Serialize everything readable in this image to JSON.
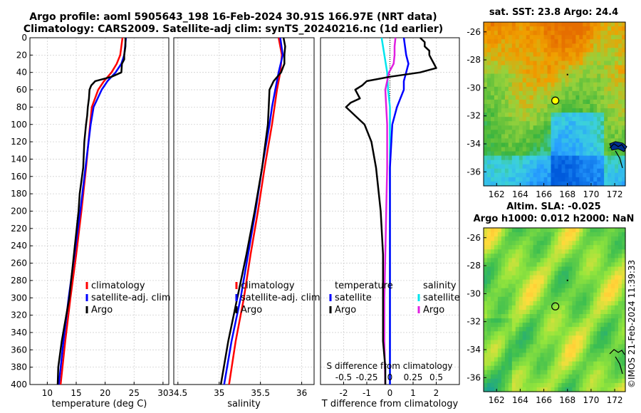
{
  "title_line1": "Argo profile: aoml 5905643_198 16-Feb-2024 30.91S 166.97E (NRT data)",
  "title_line2": "Climatology: CARS2009. Satellite-adj clim: synTS_20240216.nc (1d earlier)",
  "sst_title": "sat. SST: 23.8 Argo: 24.4",
  "sla_title1": "Altim. SLA: -0.025",
  "sla_title2": "Argo h1000: 0.012 h2000: NaN",
  "timestamp": "©IMOS 21-Feb-2024 11:39:33",
  "colors": {
    "climatology": "#ff0000",
    "satellite": "#0000ff",
    "argo": "#000000",
    "sat_salinity": "#00e5ee",
    "argo_salinity": "#e020e0"
  },
  "chart_data": [
    {
      "type": "line",
      "name": "temperature-profile",
      "xlabel": "temperature (deg C)",
      "ylabel": "",
      "xlim": [
        7,
        31
      ],
      "ylim": [
        0,
        400
      ],
      "xticks": [
        "10",
        "15",
        "20",
        "25",
        "30"
      ],
      "yticks": [
        "0",
        "20",
        "40",
        "60",
        "80",
        "100",
        "120",
        "140",
        "160",
        "180",
        "200",
        "220",
        "240",
        "260",
        "280",
        "300",
        "320",
        "340",
        "360",
        "380",
        "400"
      ],
      "legend": [
        "climatology",
        "satellite-adj. clim",
        "Argo"
      ],
      "series": [
        {
          "name": "climatology",
          "depth": [
            0,
            20,
            30,
            40,
            50,
            60,
            80,
            100,
            150,
            200,
            250,
            300,
            350,
            400
          ],
          "values": [
            23.0,
            22.6,
            22.0,
            21.1,
            19.8,
            18.8,
            17.7,
            17.4,
            16.7,
            15.9,
            15.0,
            14.0,
            13.1,
            12.3
          ]
        },
        {
          "name": "satellite-adj. clim",
          "depth": [
            0,
            20,
            30,
            40,
            50,
            60,
            80,
            100,
            150,
            200,
            250,
            300,
            350,
            400
          ],
          "values": [
            23.6,
            23.3,
            22.8,
            21.8,
            20.4,
            19.4,
            18.0,
            17.5,
            16.6,
            15.7,
            14.7,
            13.7,
            12.8,
            12.0
          ]
        },
        {
          "name": "Argo",
          "depth": [
            0,
            10,
            20,
            25,
            30,
            40,
            45,
            50,
            55,
            60,
            70,
            80,
            90,
            100,
            120,
            150,
            180,
            200,
            250,
            300,
            350,
            380,
            400
          ],
          "values": [
            23.5,
            23.5,
            23.3,
            23.3,
            22.9,
            22.8,
            21.1,
            18.3,
            17.6,
            17.3,
            17.2,
            17.0,
            16.9,
            16.7,
            16.4,
            16.2,
            15.6,
            15.4,
            14.6,
            13.8,
            12.5,
            11.9,
            11.8
          ]
        }
      ]
    },
    {
      "type": "line",
      "name": "salinity-profile",
      "xlabel": "salinity",
      "ylabel": "",
      "xlim": [
        34.45,
        36.15
      ],
      "ylim": [
        0,
        400
      ],
      "xticks": [
        "34.5",
        "35",
        "35.5",
        "36"
      ],
      "legend": [
        "climatology",
        "satellite-adj. clim",
        "Argo"
      ],
      "series": [
        {
          "name": "climatology",
          "depth": [
            0,
            20,
            40,
            60,
            80,
            100,
            150,
            200,
            250,
            300,
            350,
            400
          ],
          "values": [
            35.72,
            35.76,
            35.74,
            35.7,
            35.67,
            35.64,
            35.55,
            35.47,
            35.38,
            35.3,
            35.2,
            35.12
          ]
        },
        {
          "name": "satellite-adj. clim",
          "depth": [
            0,
            20,
            40,
            60,
            80,
            100,
            150,
            200,
            250,
            300,
            350,
            400
          ],
          "values": [
            35.74,
            35.77,
            35.72,
            35.68,
            35.64,
            35.61,
            35.52,
            35.44,
            35.35,
            35.26,
            35.15,
            35.06
          ]
        },
        {
          "name": "Argo",
          "depth": [
            0,
            10,
            20,
            30,
            40,
            50,
            60,
            80,
            100,
            150,
            200,
            250,
            300,
            350,
            400
          ],
          "values": [
            35.78,
            35.8,
            35.79,
            35.79,
            35.75,
            35.66,
            35.61,
            35.6,
            35.59,
            35.52,
            35.43,
            35.33,
            35.22,
            35.11,
            35.02
          ]
        }
      ]
    },
    {
      "type": "line",
      "name": "difference-profile",
      "xlabel": "T difference from climatology",
      "top_xlabel": "S difference from climatology",
      "xlim": [
        -3,
        3
      ],
      "ylim": [
        0,
        400
      ],
      "xticks": [
        "-2",
        "-1",
        "0",
        "1",
        "2"
      ],
      "top_xticks": [
        "-0.5",
        "-0.25",
        "0",
        "0.25",
        "0.5"
      ],
      "legend_temperature": [
        "temperature",
        "satellite",
        "Argo"
      ],
      "legend_salinity": [
        "salinity",
        "satellite",
        "Argo"
      ],
      "series": [
        {
          "name": "temperature satellite",
          "depth": [
            0,
            20,
            30,
            40,
            50,
            60,
            80,
            100,
            150,
            200,
            400
          ],
          "values": [
            0.6,
            0.7,
            0.8,
            0.7,
            0.6,
            0.6,
            0.3,
            0.1,
            0.0,
            0.0,
            0.0
          ]
        },
        {
          "name": "temperature Argo",
          "depth": [
            0,
            5,
            10,
            15,
            20,
            25,
            30,
            35,
            40,
            45,
            50,
            55,
            60,
            70,
            75,
            80,
            90,
            100,
            120,
            150,
            200,
            250,
            300,
            350,
            380,
            400
          ],
          "values": [
            1.3,
            1.5,
            1.5,
            1.7,
            1.7,
            1.8,
            1.9,
            2.0,
            1.3,
            0.0,
            -1.0,
            -1.2,
            -1.5,
            -1.3,
            -1.7,
            -1.9,
            -1.5,
            -1.1,
            -0.8,
            -0.6,
            -0.4,
            -0.3,
            -0.3,
            -0.3,
            -0.2,
            -0.2
          ]
        },
        {
          "name": "salinity satellite",
          "depth": [
            0,
            20,
            40,
            60,
            80,
            100,
            150,
            200,
            400
          ],
          "values": [
            -0.09,
            -0.06,
            -0.03,
            -0.02,
            0.0,
            0.0,
            0.0,
            0.0,
            0.0
          ]
        },
        {
          "name": "salinity Argo",
          "depth": [
            0,
            10,
            20,
            30,
            40,
            60,
            80,
            100,
            150,
            200,
            250,
            300,
            350,
            400
          ],
          "values": [
            0.06,
            0.05,
            0.05,
            0.04,
            -0.01,
            -0.05,
            -0.04,
            -0.03,
            -0.03,
            -0.04,
            -0.05,
            -0.06,
            -0.06,
            -0.05
          ]
        }
      ]
    },
    {
      "type": "heatmap",
      "name": "sst-map",
      "title": "sat. SST: 23.8 Argo: 24.4",
      "xlim": [
        160.9,
        172.9
      ],
      "ylim": [
        -37,
        -25.3
      ],
      "xticks": [
        "162",
        "164",
        "166",
        "168",
        "170",
        "172"
      ],
      "yticks": [
        "-26",
        "-28",
        "-30",
        "-32",
        "-34",
        "-36"
      ],
      "argo_position": {
        "lon": 166.97,
        "lat": -30.91
      }
    },
    {
      "type": "heatmap",
      "name": "sla-map",
      "title": "Altim. SLA: -0.025",
      "xlim": [
        160.9,
        172.9
      ],
      "ylim": [
        -37,
        -25.3
      ],
      "xticks": [
        "162",
        "164",
        "166",
        "168",
        "170",
        "172"
      ],
      "yticks": [
        "-26",
        "-28",
        "-30",
        "-32",
        "-34",
        "-36"
      ],
      "argo_position": {
        "lon": 166.97,
        "lat": -30.91
      }
    }
  ]
}
